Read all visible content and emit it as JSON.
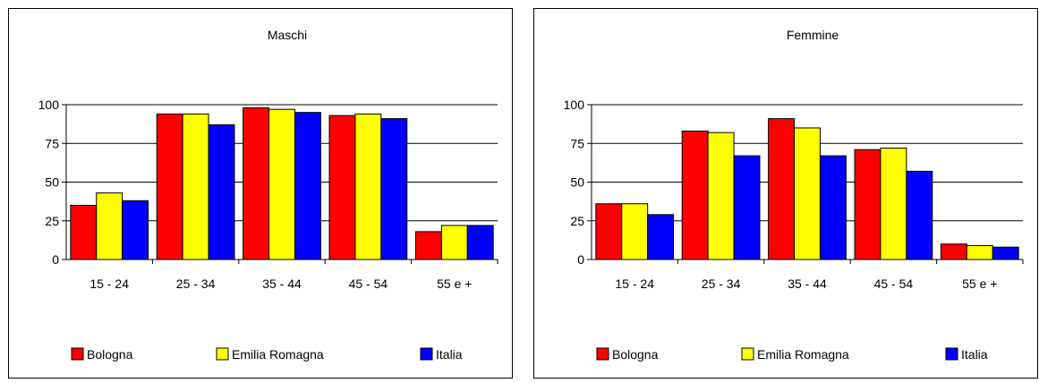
{
  "chart_data": [
    {
      "type": "bar",
      "title": "Maschi",
      "categories": [
        "15 - 24",
        "25 - 34",
        "35 - 44",
        "45 - 54",
        "55 e +"
      ],
      "ylim": [
        0,
        100
      ],
      "yticks": [
        0,
        25,
        50,
        75,
        100
      ],
      "grid": true,
      "legend_position": "bottom",
      "series": [
        {
          "name": "Bologna",
          "color": "#ff0000",
          "values": [
            35,
            94,
            98,
            93,
            18
          ]
        },
        {
          "name": "Emilia Romagna",
          "color": "#ffff00",
          "values": [
            43,
            94,
            97,
            94,
            22
          ]
        },
        {
          "name": "Italia",
          "color": "#0000ff",
          "values": [
            38,
            87,
            95,
            91,
            22
          ]
        }
      ]
    },
    {
      "type": "bar",
      "title": "Femmine",
      "categories": [
        "15 - 24",
        "25 - 34",
        "35 - 44",
        "45 - 54",
        "55 e +"
      ],
      "ylim": [
        0,
        100
      ],
      "yticks": [
        0,
        25,
        50,
        75,
        100
      ],
      "grid": true,
      "legend_position": "bottom",
      "series": [
        {
          "name": "Bologna",
          "color": "#ff0000",
          "values": [
            36,
            83,
            91,
            71,
            10
          ]
        },
        {
          "name": "Emilia Romagna",
          "color": "#ffff00",
          "values": [
            36,
            82,
            85,
            72,
            9
          ]
        },
        {
          "name": "Italia",
          "color": "#0000ff",
          "values": [
            29,
            67,
            67,
            57,
            8
          ]
        }
      ]
    }
  ]
}
